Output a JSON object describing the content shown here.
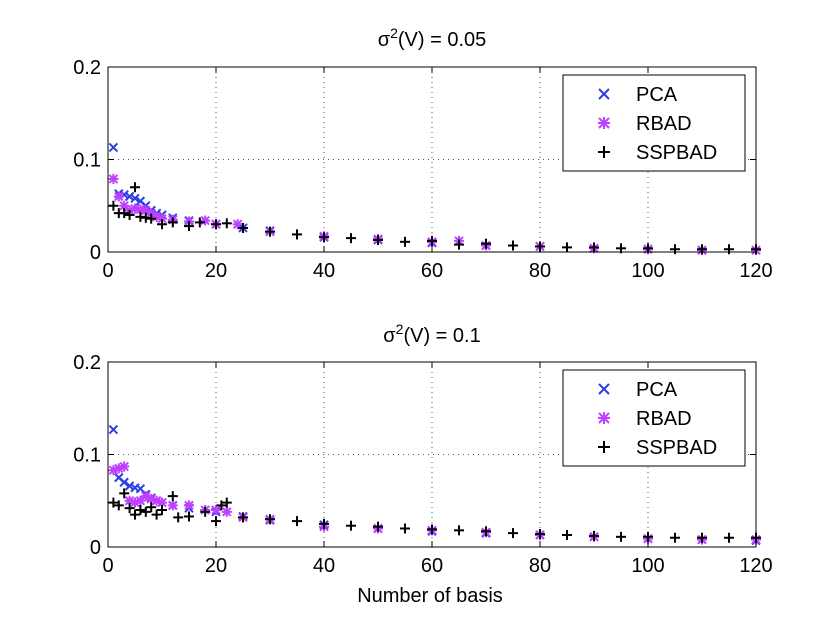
{
  "figure": {
    "xlabel": "Number of basis",
    "legend_placement": "top-right"
  },
  "colors": {
    "PCA": "#2B3FE6",
    "RBAD": "#C040FF",
    "SSPBAD": "#000000"
  },
  "chart_data": [
    {
      "type": "scatter",
      "title": "σ²(V) = 0.05",
      "title_parts": {
        "symbol": "σ",
        "superscript": "2",
        "rest": "(V) = 0.05"
      },
      "xlabel": "",
      "ylabel": "",
      "xlim": [
        0,
        120
      ],
      "ylim": [
        0,
        0.2
      ],
      "xticks": [
        "0",
        "20",
        "40",
        "60",
        "80",
        "100",
        "120"
      ],
      "yticks": [
        "0",
        "0.1",
        "0.2"
      ],
      "grid": true,
      "legend": [
        "PCA",
        "RBAD",
        "SSPBAD"
      ],
      "series": [
        {
          "name": "PCA",
          "marker": "x",
          "color": "#2B3FE6",
          "points": [
            [
              1,
              0.113
            ],
            [
              2,
              0.063
            ],
            [
              3,
              0.062
            ],
            [
              4,
              0.06
            ],
            [
              5,
              0.058
            ],
            [
              6,
              0.055
            ],
            [
              7,
              0.05
            ],
            [
              8,
              0.045
            ],
            [
              9,
              0.042
            ],
            [
              10,
              0.04
            ],
            [
              12,
              0.037
            ],
            [
              15,
              0.034
            ],
            [
              20,
              0.03
            ],
            [
              25,
              0.026
            ],
            [
              30,
              0.023
            ],
            [
              40,
              0.016
            ],
            [
              50,
              0.013
            ],
            [
              60,
              0.01
            ],
            [
              70,
              0.007
            ],
            [
              80,
              0.006
            ],
            [
              90,
              0.004
            ],
            [
              100,
              0.003
            ],
            [
              110,
              0.002
            ],
            [
              120,
              0.002
            ]
          ]
        },
        {
          "name": "RBAD",
          "marker": "*",
          "color": "#C040FF",
          "points": [
            [
              1,
              0.079
            ],
            [
              2,
              0.06
            ],
            [
              3,
              0.05
            ],
            [
              4,
              0.045
            ],
            [
              5,
              0.047
            ],
            [
              6,
              0.046
            ],
            [
              7,
              0.045
            ],
            [
              8,
              0.042
            ],
            [
              9,
              0.038
            ],
            [
              10,
              0.036
            ],
            [
              12,
              0.035
            ],
            [
              15,
              0.033
            ],
            [
              18,
              0.034
            ],
            [
              20,
              0.03
            ],
            [
              24,
              0.03
            ],
            [
              30,
              0.022
            ],
            [
              40,
              0.017
            ],
            [
              50,
              0.014
            ],
            [
              60,
              0.011
            ],
            [
              65,
              0.012
            ],
            [
              70,
              0.007
            ],
            [
              80,
              0.006
            ],
            [
              90,
              0.004
            ],
            [
              100,
              0.003
            ],
            [
              110,
              0.002
            ],
            [
              120,
              0.002
            ]
          ]
        },
        {
          "name": "SSPBAD",
          "marker": "+",
          "color": "#000000",
          "points": [
            [
              1,
              0.05
            ],
            [
              2,
              0.042
            ],
            [
              3,
              0.042
            ],
            [
              4,
              0.04
            ],
            [
              5,
              0.07
            ],
            [
              6,
              0.038
            ],
            [
              7,
              0.037
            ],
            [
              8,
              0.036
            ],
            [
              10,
              0.03
            ],
            [
              12,
              0.032
            ],
            [
              15,
              0.028
            ],
            [
              17,
              0.032
            ],
            [
              20,
              0.03
            ],
            [
              22,
              0.031
            ],
            [
              25,
              0.026
            ],
            [
              30,
              0.022
            ],
            [
              35,
              0.019
            ],
            [
              40,
              0.016
            ],
            [
              45,
              0.015
            ],
            [
              50,
              0.013
            ],
            [
              55,
              0.011
            ],
            [
              60,
              0.012
            ],
            [
              65,
              0.008
            ],
            [
              70,
              0.009
            ],
            [
              75,
              0.007
            ],
            [
              80,
              0.006
            ],
            [
              85,
              0.005
            ],
            [
              90,
              0.005
            ],
            [
              95,
              0.004
            ],
            [
              100,
              0.004
            ],
            [
              105,
              0.003
            ],
            [
              110,
              0.003
            ],
            [
              115,
              0.003
            ],
            [
              120,
              0.003
            ]
          ]
        }
      ]
    },
    {
      "type": "scatter",
      "title": "σ²(V) = 0.1",
      "title_parts": {
        "symbol": "σ",
        "superscript": "2",
        "rest": "(V) = 0.1"
      },
      "xlabel": "Number of basis",
      "ylabel": "",
      "xlim": [
        0,
        120
      ],
      "ylim": [
        0,
        0.2
      ],
      "xticks": [
        "0",
        "20",
        "40",
        "60",
        "80",
        "100",
        "120"
      ],
      "yticks": [
        "0",
        "0.1",
        "0.2"
      ],
      "grid": true,
      "legend": [
        "PCA",
        "RBAD",
        "SSPBAD"
      ],
      "series": [
        {
          "name": "PCA",
          "marker": "x",
          "color": "#2B3FE6",
          "points": [
            [
              1,
              0.127
            ],
            [
              2,
              0.075
            ],
            [
              3,
              0.07
            ],
            [
              4,
              0.066
            ],
            [
              5,
              0.064
            ],
            [
              6,
              0.063
            ],
            [
              7,
              0.057
            ],
            [
              8,
              0.053
            ],
            [
              9,
              0.05
            ],
            [
              10,
              0.048
            ],
            [
              12,
              0.045
            ],
            [
              15,
              0.042
            ],
            [
              20,
              0.038
            ],
            [
              25,
              0.033
            ],
            [
              30,
              0.029
            ],
            [
              40,
              0.024
            ],
            [
              50,
              0.02
            ],
            [
              60,
              0.017
            ],
            [
              70,
              0.015
            ],
            [
              80,
              0.013
            ],
            [
              90,
              0.011
            ],
            [
              100,
              0.009
            ],
            [
              110,
              0.008
            ],
            [
              120,
              0.007
            ]
          ]
        },
        {
          "name": "RBAD",
          "marker": "*",
          "color": "#C040FF",
          "points": [
            [
              1,
              0.083
            ],
            [
              2,
              0.085
            ],
            [
              3,
              0.087
            ],
            [
              4,
              0.05
            ],
            [
              5,
              0.048
            ],
            [
              6,
              0.05
            ],
            [
              7,
              0.055
            ],
            [
              8,
              0.052
            ],
            [
              9,
              0.05
            ],
            [
              10,
              0.048
            ],
            [
              12,
              0.045
            ],
            [
              15,
              0.045
            ],
            [
              18,
              0.04
            ],
            [
              20,
              0.04
            ],
            [
              22,
              0.038
            ],
            [
              25,
              0.032
            ],
            [
              30,
              0.03
            ],
            [
              40,
              0.022
            ],
            [
              50,
              0.02
            ],
            [
              60,
              0.018
            ],
            [
              70,
              0.016
            ],
            [
              80,
              0.013
            ],
            [
              90,
              0.011
            ],
            [
              100,
              0.009
            ],
            [
              110,
              0.008
            ],
            [
              120,
              0.008
            ]
          ]
        },
        {
          "name": "SSPBAD",
          "marker": "+",
          "color": "#000000",
          "points": [
            [
              1,
              0.048
            ],
            [
              2,
              0.045
            ],
            [
              3,
              0.058
            ],
            [
              4,
              0.042
            ],
            [
              5,
              0.035
            ],
            [
              6,
              0.04
            ],
            [
              7,
              0.038
            ],
            [
              8,
              0.043
            ],
            [
              9,
              0.035
            ],
            [
              10,
              0.04
            ],
            [
              12,
              0.055
            ],
            [
              13,
              0.032
            ],
            [
              15,
              0.033
            ],
            [
              18,
              0.038
            ],
            [
              20,
              0.028
            ],
            [
              21,
              0.045
            ],
            [
              22,
              0.048
            ],
            [
              25,
              0.032
            ],
            [
              30,
              0.03
            ],
            [
              35,
              0.028
            ],
            [
              40,
              0.025
            ],
            [
              45,
              0.023
            ],
            [
              50,
              0.022
            ],
            [
              55,
              0.02
            ],
            [
              60,
              0.019
            ],
            [
              65,
              0.018
            ],
            [
              70,
              0.017
            ],
            [
              75,
              0.015
            ],
            [
              80,
              0.014
            ],
            [
              85,
              0.013
            ],
            [
              90,
              0.012
            ],
            [
              95,
              0.011
            ],
            [
              100,
              0.011
            ],
            [
              105,
              0.01
            ],
            [
              110,
              0.01
            ],
            [
              115,
              0.01
            ],
            [
              120,
              0.01
            ]
          ]
        }
      ]
    }
  ]
}
